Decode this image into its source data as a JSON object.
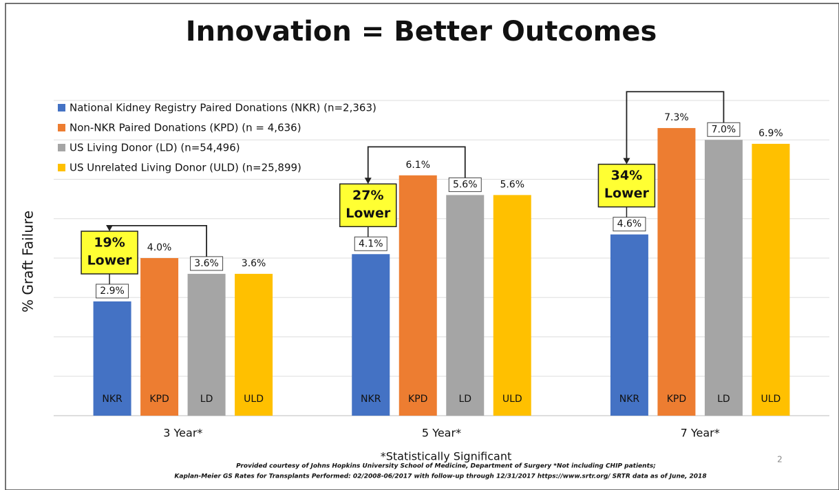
{
  "chart_data": {
    "type": "bar",
    "title": "Innovation = Better Outcomes",
    "ylabel": "% Graft Failure",
    "categories": [
      "3 Year*",
      "5 Year*",
      "7 Year*"
    ],
    "ylim": [
      0,
      8
    ],
    "yticks": [
      0,
      1,
      2,
      3,
      4,
      5,
      6,
      7,
      8
    ],
    "grid": true,
    "legend": "top-left",
    "series": [
      {
        "name": "National Kidney Registry Paired Donations (NKR) (n=2,363)",
        "abbr": "NKR",
        "color": "#4472c4",
        "label_box": true,
        "values": [
          2.9,
          4.1,
          4.6
        ],
        "value_labels": [
          "2.9%",
          "4.1%",
          "4.6%"
        ]
      },
      {
        "name": "Non-NKR Paired Donations (KPD) (n = 4,636)",
        "abbr": "KPD",
        "color": "#ed7d31",
        "label_box": false,
        "values": [
          4.0,
          6.1,
          7.3
        ],
        "value_labels": [
          "4.0%",
          "6.1%",
          "7.3%"
        ]
      },
      {
        "name": "US Living Donor (LD) (n=54,496)",
        "abbr": "LD",
        "color": "#a5a5a5",
        "label_box": true,
        "values": [
          3.6,
          5.6,
          7.0
        ],
        "value_labels": [
          "3.6%",
          "5.6%",
          "7.0%"
        ]
      },
      {
        "name": "US Unrelated Living Donor (ULD) (n=25,899)",
        "abbr": "ULD",
        "color": "#ffc000",
        "label_box": false,
        "values": [
          3.6,
          5.6,
          6.9
        ],
        "value_labels": [
          "3.6%",
          "5.6%",
          "6.9%"
        ]
      }
    ],
    "annotations": [
      [
        "19%",
        "Lower"
      ],
      [
        "27%",
        "Lower"
      ],
      [
        "34%",
        "Lower"
      ]
    ],
    "footnote": "*Statistically Significant",
    "source": [
      "Provided courtesy of Johns Hopkins University School of Medicine, Department of Surgery *Not including CHIP patients;",
      "Kaplan-Meier GS Rates for Transplants Performed: 02/2008-06/2017 with follow-up through 12/31/2017 https://www.srtr.org/ SRTR data as of June, 2018"
    ],
    "page_number": "2"
  }
}
